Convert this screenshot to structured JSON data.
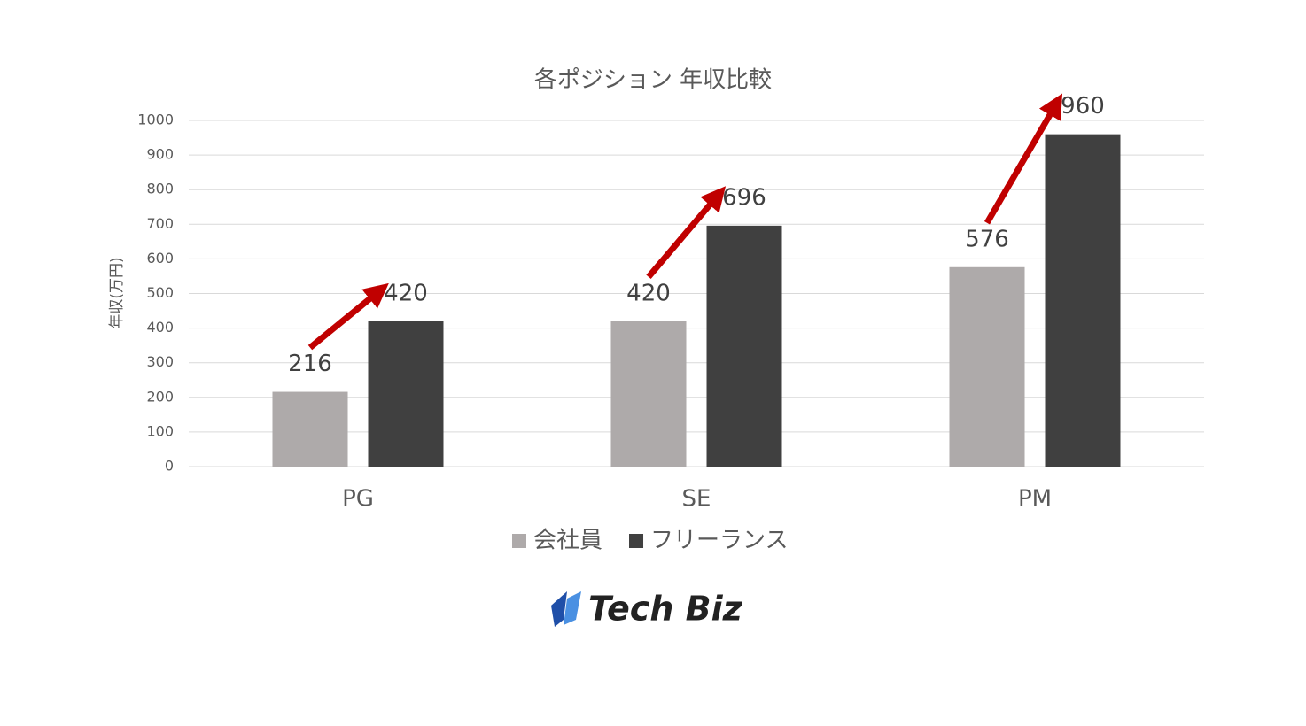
{
  "chart_data": {
    "type": "bar",
    "title": "各ポジション 年収比較",
    "y_label": "年収(万円)",
    "categories": [
      "PG",
      "SE",
      "PM"
    ],
    "series": [
      {
        "name": "会社員",
        "color": "#aeaaaa",
        "values": [
          216,
          420,
          576
        ]
      },
      {
        "name": "フリーランス",
        "color": "#404040",
        "values": [
          420,
          696,
          960
        ]
      }
    ],
    "ylim": [
      0,
      1000
    ],
    "yticks": [
      0,
      100,
      200,
      300,
      400,
      500,
      600,
      700,
      800,
      900,
      1000
    ],
    "grid": true,
    "legend": "bottom"
  },
  "logo": "Tech Biz"
}
